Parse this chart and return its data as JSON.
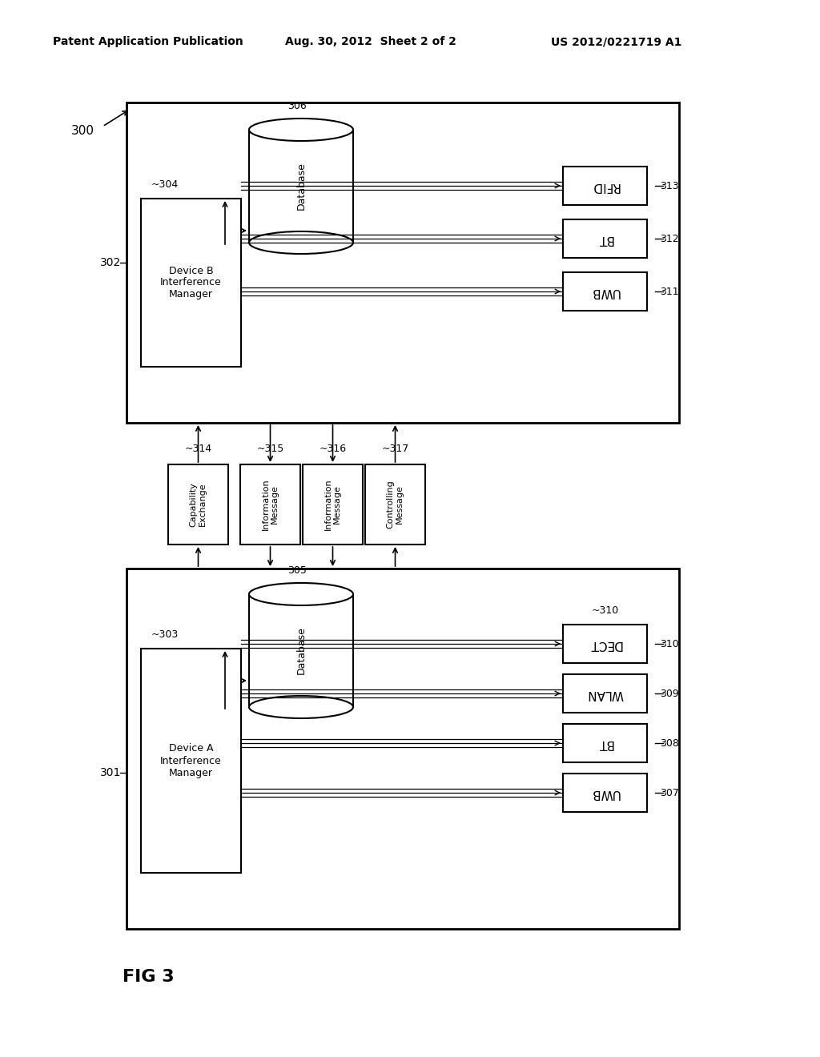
{
  "background": "#ffffff",
  "header_left": "Patent Application Publication",
  "header_mid": "Aug. 30, 2012  Sheet 2 of 2",
  "header_right": "US 2012/0221719 A1",
  "fig_label": "FIG 3",
  "device_b_label": "Device B\nInterference\nManager",
  "device_a_label": "Device A\nInterference\nManager",
  "db_label": "Database",
  "radio_b": [
    "RFID",
    "BT",
    "UWB"
  ],
  "radio_b_nums": [
    "313",
    "312",
    "311"
  ],
  "radio_a": [
    "DECT",
    "WLAN",
    "BT",
    "UWB"
  ],
  "radio_a_nums": [
    "310",
    "309",
    "308",
    "307"
  ],
  "messages": [
    "Capability\nExchange",
    "Information\nMessage",
    "Information\nMessage",
    "Controlling\nMessage"
  ],
  "msg_nums": [
    "~314",
    "~315",
    "~316",
    "~317"
  ]
}
